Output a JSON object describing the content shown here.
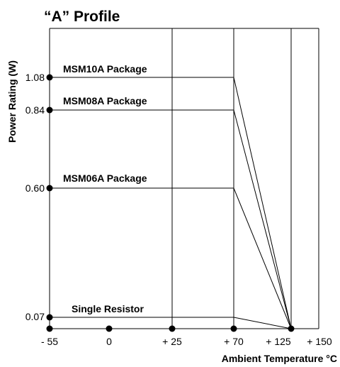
{
  "chart_data": {
    "type": "line",
    "title": "“A” Profile",
    "xlabel": "Ambient Temperature °C",
    "ylabel": "Power Rating (W)",
    "x_ticks": [
      "- 55",
      "0",
      "+ 25",
      "+ 70",
      "+ 125",
      "+ 150"
    ],
    "y_ticks": [
      "1.08",
      "0.84",
      "0.60",
      "0.07"
    ],
    "series": [
      {
        "name": "MSM10A Package",
        "x": [
          -55,
          70,
          125
        ],
        "y": [
          1.08,
          1.08,
          0
        ]
      },
      {
        "name": "MSM08A Package",
        "x": [
          -55,
          70,
          125
        ],
        "y": [
          0.84,
          0.84,
          0
        ]
      },
      {
        "name": "MSM06A Package",
        "x": [
          -55,
          70,
          125
        ],
        "y": [
          0.6,
          0.6,
          0
        ]
      },
      {
        "name": "Single Resistor",
        "x": [
          -55,
          70,
          125
        ],
        "y": [
          0.07,
          0.07,
          0
        ]
      }
    ],
    "xlim": [
      -55,
      150
    ],
    "ylim": [
      0,
      1.2
    ],
    "grid": "vertical lines at 25, 70, 125 and 150"
  }
}
